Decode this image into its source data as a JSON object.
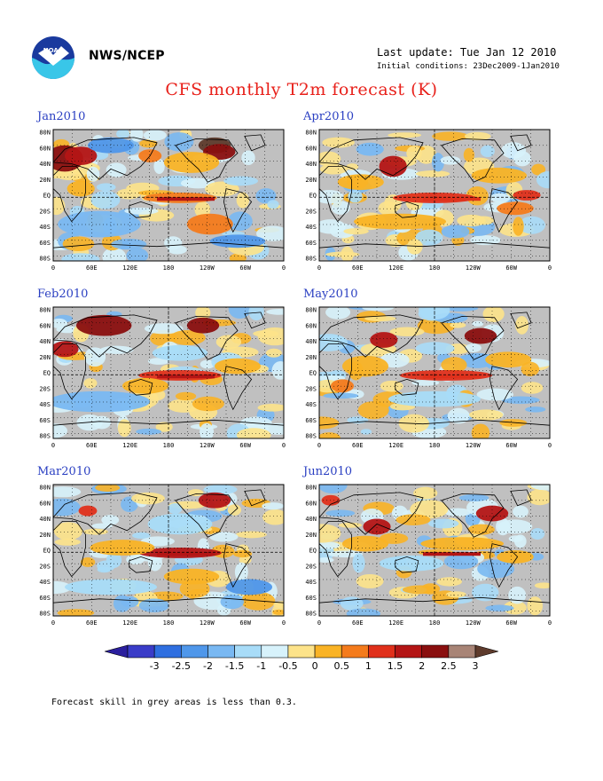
{
  "header": {
    "agency": "NWS/NCEP",
    "last_update": "Last update: Tue Jan 12 2010",
    "initial_conditions": "Initial conditions: 23Dec2009-1Jan2010",
    "title": "CFS monthly T2m forecast (K)"
  },
  "map_axes": {
    "lat_labels": [
      "80N",
      "60N",
      "40N",
      "20N",
      "EQ",
      "20S",
      "40S",
      "60S",
      "80S"
    ],
    "lon_labels": [
      "0",
      "60E",
      "120E",
      "180",
      "120W",
      "60W",
      "0"
    ]
  },
  "panels": [
    {
      "label": "Jan2010",
      "column": 0,
      "row": 0
    },
    {
      "label": "Apr2010",
      "column": 1,
      "row": 0
    },
    {
      "label": "Feb2010",
      "column": 0,
      "row": 1
    },
    {
      "label": "May2010",
      "column": 1,
      "row": 1
    },
    {
      "label": "Mar2010",
      "column": 0,
      "row": 2
    },
    {
      "label": "Jun2010",
      "column": 1,
      "row": 2
    }
  ],
  "colorbar": {
    "labels": [
      "-3",
      "-2.5",
      "-2",
      "-1.5",
      "-1",
      "-0.5",
      "0",
      "0.5",
      "1",
      "1.5",
      "2",
      "2.5",
      "3"
    ],
    "colors": [
      "#2b1f9e",
      "#3a3cc8",
      "#2f6fe0",
      "#4f97ea",
      "#79b8f2",
      "#a8dcf8",
      "#d7f2fb",
      "#fde38a",
      "#f9b325",
      "#f47b1c",
      "#e0301b",
      "#b41515",
      "#8a0f0f",
      "#a88476",
      "#5e3b2c"
    ]
  },
  "palette": {
    "grey": "#c0c0c0",
    "land_outline": "#000000"
  },
  "footnote": "Forecast skill in grey areas is less than 0.3."
}
